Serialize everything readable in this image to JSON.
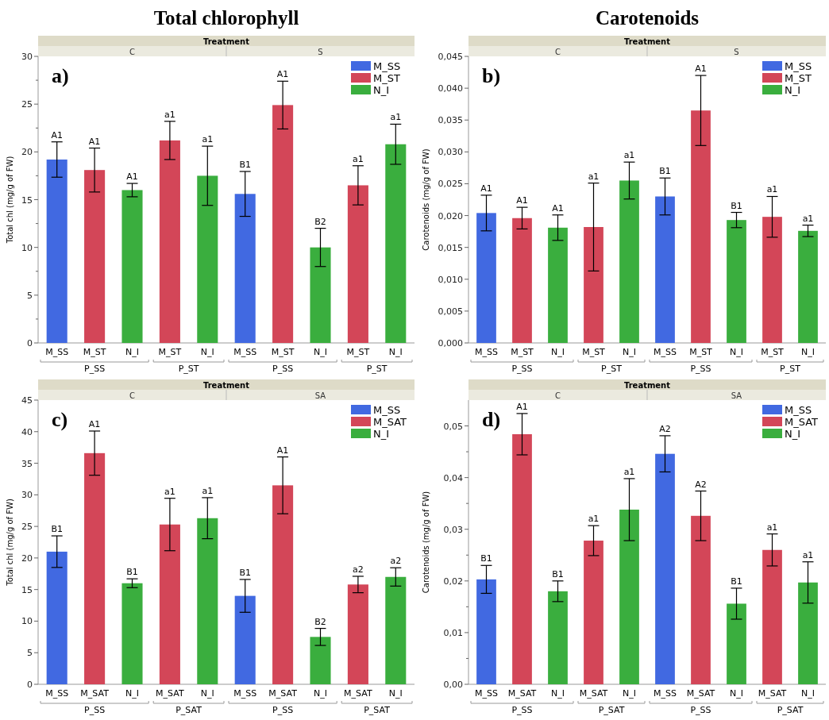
{
  "chart_data": [
    {
      "type": "bar",
      "title": "Total chlorophyll",
      "ylabel": "Total chl (mg/g of FW)",
      "categories": [
        "M_SS",
        "M_ST",
        "N_I",
        "M_ST",
        "N_I",
        "M_SS",
        "M_ST",
        "N_I",
        "M_ST",
        "N_I"
      ],
      "ylim": [
        0,
        30
      ],
      "yticks": [
        0,
        {
          "value": 2.5,
          "label": null
        },
        5,
        {
          "value": 7.5,
          "label": null
        },
        10,
        {
          "value": 12.5,
          "label": null
        },
        15,
        {
          "value": 17.5,
          "label": null
        },
        20,
        {
          "value": 22.5,
          "label": null
        },
        25,
        {
          "value": 27.5,
          "label": null
        },
        30
      ],
      "grid": false,
      "legend": "top right",
      "annotations": [
        "a)",
        "Treatment",
        "C",
        "S",
        "P_SS",
        "P_ST",
        "P_SS",
        "P_ST",
        "A1",
        "A1",
        "A1",
        "a1",
        "a1",
        "B1",
        "A1",
        "B2",
        "a1",
        "a1"
      ],
      "series": [
        {
          "name": "M_SS",
          "color": "#4169e1",
          "values": [
            19.2,
            null,
            null,
            null,
            null,
            15.6,
            null,
            null,
            null,
            null
          ],
          "errors": [
            1.85,
            null,
            null,
            null,
            null,
            2.35,
            null,
            null,
            null,
            null
          ]
        },
        {
          "name": "M_ST",
          "color": "#d34658",
          "values": [
            null,
            18.1,
            null,
            21.2,
            null,
            null,
            24.9,
            null,
            16.5,
            null
          ],
          "errors": [
            null,
            2.3,
            null,
            2.0,
            null,
            null,
            2.5,
            null,
            2.05,
            null
          ]
        },
        {
          "name": "N_I",
          "color": "#3aae3e",
          "values": [
            null,
            null,
            16.0,
            null,
            17.5,
            null,
            null,
            10.0,
            null,
            20.8
          ],
          "errors": [
            null,
            null,
            0.7,
            null,
            3.1,
            null,
            null,
            2.0,
            null,
            2.1
          ]
        }
      ]
    },
    {
      "type": "bar",
      "title": "Carotenoids",
      "ylabel": "Carotenoids (mg/g of FW)",
      "categories": [
        "M_SS",
        "M_ST",
        "N_I",
        "M_ST",
        "N_I",
        "M_SS",
        "M_ST",
        "N_I",
        "M_ST",
        "N_I"
      ],
      "ylim": [
        0,
        0.045
      ],
      "yticks": [
        {
          "value": 0,
          "label": "0,000"
        },
        {
          "value": 0.005,
          "label": "0,005"
        },
        {
          "value": 0.01,
          "label": "0,010"
        },
        {
          "value": 0.015,
          "label": "0,015"
        },
        {
          "value": 0.02,
          "label": "0,020"
        },
        {
          "value": 0.025,
          "label": "0,025"
        },
        {
          "value": 0.03,
          "label": "0,030"
        },
        {
          "value": 0.035,
          "label": "0,035"
        },
        {
          "value": 0.04,
          "label": "0,040"
        },
        {
          "value": 0.045,
          "label": "0,045"
        }
      ],
      "grid": false,
      "legend": "top right",
      "annotations": [
        "b)",
        "Treatment",
        "C",
        "S",
        "P_SS",
        "P_ST",
        "P_SS",
        "P_ST",
        "A1",
        "A1",
        "A1",
        "a1",
        "a1",
        "B1",
        "A1",
        "B1",
        "a1",
        "a1"
      ],
      "series": [
        {
          "name": "M_SS",
          "color": "#4169e1",
          "values": [
            0.0204,
            null,
            null,
            null,
            null,
            0.023,
            null,
            null,
            null,
            null
          ],
          "errors": [
            0.0028,
            null,
            null,
            null,
            null,
            0.0029,
            null,
            null,
            null,
            null
          ]
        },
        {
          "name": "M_ST",
          "color": "#d34658",
          "values": [
            null,
            0.0196,
            null,
            0.0182,
            null,
            null,
            0.0365,
            null,
            0.0198,
            null
          ],
          "errors": [
            null,
            0.0017,
            null,
            0.0069,
            null,
            null,
            0.0055,
            null,
            0.0032,
            null
          ]
        },
        {
          "name": "N_I",
          "color": "#3aae3e",
          "values": [
            null,
            null,
            0.0181,
            null,
            0.0255,
            null,
            null,
            0.0193,
            null,
            0.0176
          ],
          "errors": [
            null,
            null,
            0.002,
            null,
            0.0029,
            null,
            null,
            0.0012,
            null,
            0.0009
          ]
        }
      ]
    },
    {
      "type": "bar",
      "ylabel": "Total chl (mg/g of FW)",
      "categories": [
        "M_SS",
        "M_SAT",
        "N_I",
        "M_SAT",
        "N_I",
        "M_SS",
        "M_SAT",
        "N_I",
        "M_SAT",
        "N_I"
      ],
      "ylim": [
        0,
        45
      ],
      "yticks": [
        0,
        5,
        10,
        15,
        20,
        25,
        30,
        35,
        40,
        45
      ],
      "grid": false,
      "legend": "top right",
      "annotations": [
        "c)",
        "Treatment",
        "C",
        "SA",
        "P_SS",
        "P_SAT",
        "P_SS",
        "P_SAT",
        "B1",
        "A1",
        "B1",
        "a1",
        "a1",
        "B1",
        "A1",
        "B2",
        "a2",
        "a2"
      ],
      "series": [
        {
          "name": "M_SS",
          "color": "#4169e1",
          "values": [
            21.0,
            null,
            null,
            null,
            null,
            14.0,
            null,
            null,
            null,
            null
          ],
          "errors": [
            2.5,
            null,
            null,
            null,
            null,
            2.6,
            null,
            null,
            null,
            null
          ]
        },
        {
          "name": "M_SAT",
          "color": "#d34658",
          "values": [
            null,
            36.6,
            null,
            25.3,
            null,
            null,
            31.5,
            null,
            15.8,
            null
          ],
          "errors": [
            null,
            3.5,
            null,
            4.15,
            null,
            null,
            4.5,
            null,
            1.3,
            null
          ]
        },
        {
          "name": "N_I",
          "color": "#3aae3e",
          "values": [
            null,
            null,
            16.0,
            null,
            26.3,
            null,
            null,
            7.5,
            null,
            17.0
          ],
          "errors": [
            null,
            null,
            0.7,
            null,
            3.25,
            null,
            null,
            1.35,
            null,
            1.45
          ]
        }
      ]
    },
    {
      "type": "bar",
      "ylabel": "Carotenoids (mg/g of FW)",
      "categories": [
        "M_SS",
        "M_SAT",
        "N_I",
        "M_SAT",
        "N_I",
        "M_SS",
        "M_SAT",
        "N_I",
        "M_SAT",
        "N_I"
      ],
      "ylim": [
        0,
        0.055
      ],
      "yticks": [
        {
          "value": 0,
          "label": "0,00"
        },
        {
          "value": 0.005,
          "label": null
        },
        {
          "value": 0.01,
          "label": "0,01"
        },
        {
          "value": 0.015,
          "label": null
        },
        {
          "value": 0.02,
          "label": "0,02"
        },
        {
          "value": 0.025,
          "label": null
        },
        {
          "value": 0.03,
          "label": "0,03"
        },
        {
          "value": 0.035,
          "label": null
        },
        {
          "value": 0.04,
          "label": "0,04"
        },
        {
          "value": 0.045,
          "label": null
        },
        {
          "value": 0.05,
          "label": "0,05"
        }
      ],
      "grid": false,
      "legend": "top right",
      "annotations": [
        "d)",
        "Treatment",
        "C",
        "SA",
        "P_SS",
        "P_SAT",
        "P_SS",
        "P_SAT",
        "B1",
        "A1",
        "B1",
        "a1",
        "a1",
        "A2",
        "A2",
        "B1",
        "a1",
        "a1"
      ],
      "series": [
        {
          "name": "M_SS",
          "color": "#4169e1",
          "values": [
            0.0203,
            null,
            null,
            null,
            null,
            0.0446,
            null,
            null,
            null,
            null
          ],
          "errors": [
            0.0027,
            null,
            null,
            null,
            null,
            0.0035,
            null,
            null,
            null,
            null
          ]
        },
        {
          "name": "M_SAT",
          "color": "#d34658",
          "values": [
            null,
            0.0484,
            null,
            0.0278,
            null,
            null,
            0.0326,
            null,
            0.026,
            null
          ],
          "errors": [
            null,
            0.004,
            null,
            0.0029,
            null,
            null,
            0.0048,
            null,
            0.0031,
            null
          ]
        },
        {
          "name": "N_I",
          "color": "#3aae3e",
          "values": [
            null,
            null,
            0.018,
            null,
            0.0338,
            null,
            null,
            0.0156,
            null,
            0.0197
          ],
          "errors": [
            null,
            null,
            0.002,
            null,
            0.006,
            null,
            null,
            0.003,
            null,
            0.004
          ]
        }
      ]
    }
  ]
}
